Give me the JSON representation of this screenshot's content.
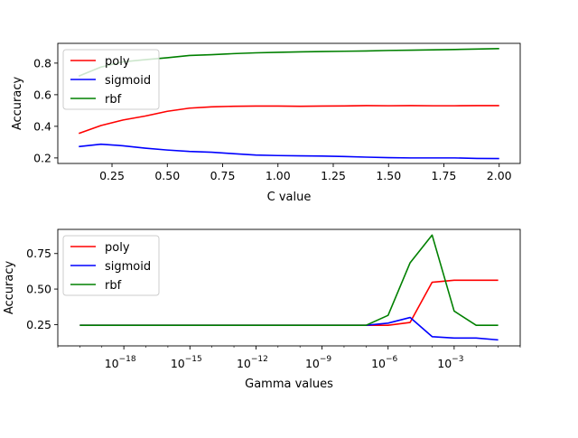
{
  "chart_data": [
    {
      "type": "line",
      "xlabel": "C value",
      "ylabel": "Accuracy",
      "x": [
        0.1,
        0.2,
        0.3,
        0.4,
        0.5,
        0.6,
        0.7,
        0.8,
        0.9,
        1.0,
        1.1,
        1.2,
        1.3,
        1.4,
        1.5,
        1.6,
        1.7,
        1.8,
        1.9,
        2.0
      ],
      "xlim": [
        0.005,
        2.095
      ],
      "ylim": [
        0.165,
        0.925
      ],
      "xticks": [
        0.25,
        0.5,
        0.75,
        1.0,
        1.25,
        1.5,
        1.75,
        2.0
      ],
      "xtick_labels": [
        "0.25",
        "0.50",
        "0.75",
        "1.00",
        "1.25",
        "1.50",
        "1.75",
        "2.00"
      ],
      "yticks": [
        0.2,
        0.4,
        0.6,
        0.8
      ],
      "ytick_labels": [
        "0.2",
        "0.4",
        "0.6",
        "0.8"
      ],
      "legend_position": "upper-left",
      "grid": false,
      "series": [
        {
          "name": "poly",
          "color": "#ff0000",
          "values": [
            0.355,
            0.405,
            0.44,
            0.465,
            0.495,
            0.515,
            0.523,
            0.527,
            0.528,
            0.528,
            0.527,
            0.528,
            0.529,
            0.531,
            0.53,
            0.531,
            0.53,
            0.53,
            0.531,
            0.531
          ]
        },
        {
          "name": "sigmoid",
          "color": "#0000ff",
          "values": [
            0.272,
            0.287,
            0.277,
            0.262,
            0.25,
            0.241,
            0.236,
            0.227,
            0.218,
            0.215,
            0.213,
            0.212,
            0.209,
            0.205,
            0.202,
            0.2,
            0.2,
            0.2,
            0.197,
            0.196
          ]
        },
        {
          "name": "rbf",
          "color": "#008000",
          "values": [
            0.718,
            0.775,
            0.808,
            0.822,
            0.834,
            0.848,
            0.853,
            0.86,
            0.865,
            0.868,
            0.871,
            0.873,
            0.875,
            0.877,
            0.88,
            0.882,
            0.884,
            0.886,
            0.889,
            0.892
          ]
        }
      ]
    },
    {
      "type": "line",
      "xlabel": "Gamma values",
      "ylabel": "Accuracy",
      "xscale": "log",
      "x": [
        1e-20,
        1e-19,
        1e-18,
        1e-17,
        1e-16,
        1e-15,
        1e-14,
        1e-13,
        1e-12,
        1e-11,
        1e-10,
        1e-09,
        1e-08,
        1e-07,
        1e-06,
        1e-05,
        0.0001,
        0.001,
        0.01,
        0.1
      ],
      "xlim": [
        1e-21,
        1
      ],
      "ylim": [
        0.1,
        0.92
      ],
      "xticks": [
        1e-18,
        1e-15,
        1e-12,
        1e-09,
        1e-06,
        0.001
      ],
      "xtick_labels": [
        [
          "10",
          "−18"
        ],
        [
          "10",
          "−15"
        ],
        [
          "10",
          "−12"
        ],
        [
          "10",
          "−9"
        ],
        [
          "10",
          "−6"
        ],
        [
          "10",
          "−3"
        ]
      ],
      "yticks": [
        0.25,
        0.5,
        0.75
      ],
      "ytick_labels": [
        "0.25",
        "0.50",
        "0.75"
      ],
      "legend_position": "upper-left",
      "grid": false,
      "series": [
        {
          "name": "poly",
          "color": "#ff0000",
          "values": [
            0.245,
            0.245,
            0.245,
            0.245,
            0.245,
            0.245,
            0.245,
            0.245,
            0.245,
            0.245,
            0.245,
            0.245,
            0.245,
            0.245,
            0.245,
            0.265,
            0.548,
            0.562,
            0.562,
            0.562
          ]
        },
        {
          "name": "sigmoid",
          "color": "#0000ff",
          "values": [
            0.245,
            0.245,
            0.245,
            0.245,
            0.245,
            0.245,
            0.245,
            0.245,
            0.245,
            0.245,
            0.245,
            0.245,
            0.245,
            0.245,
            0.26,
            0.3,
            0.165,
            0.155,
            0.155,
            0.142
          ]
        },
        {
          "name": "rbf",
          "color": "#008000",
          "values": [
            0.245,
            0.245,
            0.245,
            0.245,
            0.245,
            0.245,
            0.245,
            0.245,
            0.245,
            0.245,
            0.245,
            0.245,
            0.245,
            0.245,
            0.315,
            0.685,
            0.88,
            0.345,
            0.245,
            0.245
          ]
        }
      ]
    }
  ]
}
